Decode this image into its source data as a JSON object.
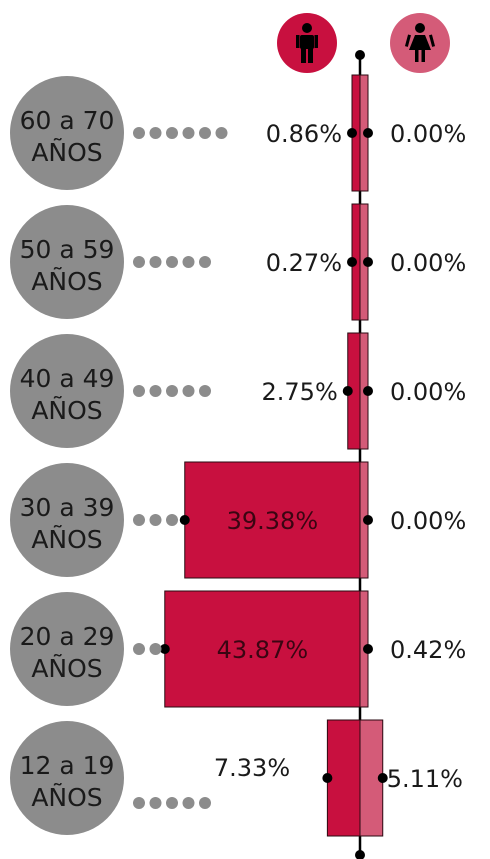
{
  "chart_data": {
    "type": "bar",
    "categories": [
      {
        "line1": "60 a 70",
        "line2": "AÑOS"
      },
      {
        "line1": "50 a 59",
        "line2": "AÑOS"
      },
      {
        "line1": "40 a 49",
        "line2": "AÑOS"
      },
      {
        "line1": "30 a 39",
        "line2": "AÑOS"
      },
      {
        "line1": "20 a 29",
        "line2": "AÑOS"
      },
      {
        "line1": "12 a 19",
        "line2": "AÑOS"
      }
    ],
    "series": [
      {
        "icon": "male-icon",
        "values": [
          0.86,
          0.27,
          2.75,
          39.38,
          43.87,
          7.33
        ],
        "labels": [
          "0.86%",
          "0.27%",
          "2.75%",
          "39.38%",
          "43.87%",
          "7.33%"
        ]
      },
      {
        "icon": "female-icon",
        "values": [
          0.0,
          0.0,
          0.0,
          0.0,
          0.42,
          5.11
        ],
        "labels": [
          "0.00%",
          "0.00%",
          "0.00%",
          "0.00%",
          "0.42%",
          "5.11%"
        ]
      }
    ],
    "colors": {
      "male": "#c8103f",
      "female": "#d45b78",
      "category_circle": "#8c8c8c",
      "axis": "#000000"
    }
  }
}
